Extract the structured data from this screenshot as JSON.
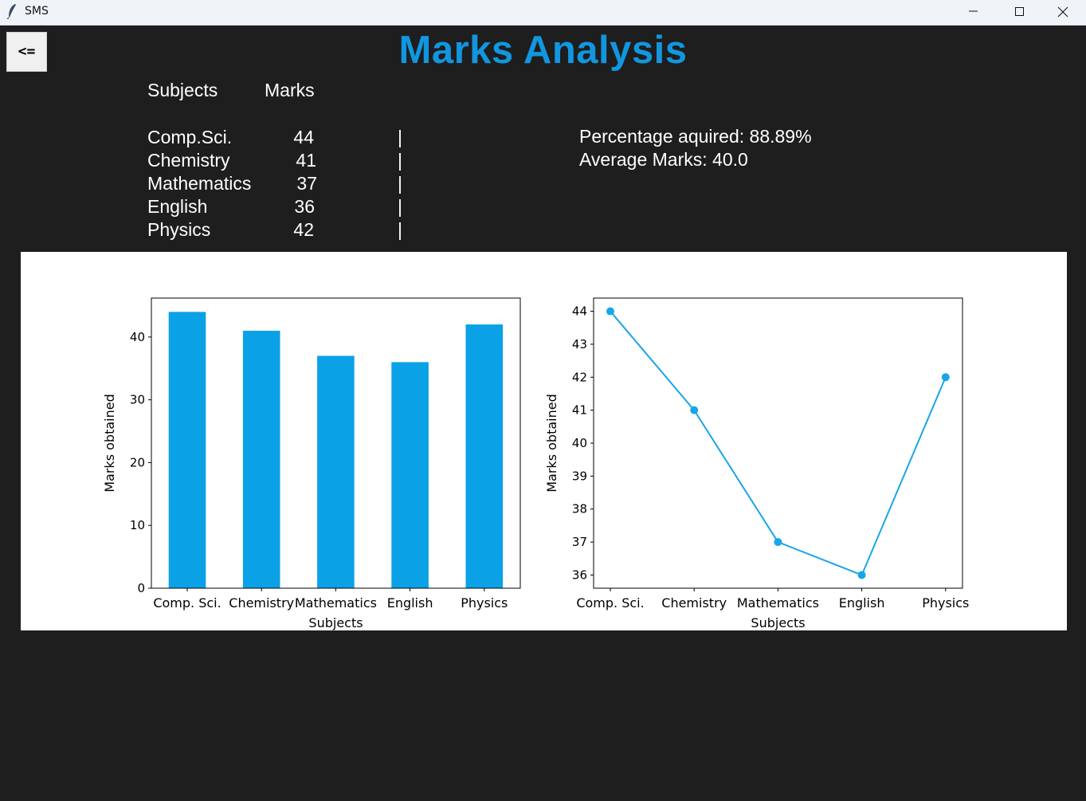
{
  "window": {
    "title": "SMS"
  },
  "back_button": {
    "label": "<="
  },
  "page": {
    "title": "Marks Analysis"
  },
  "table": {
    "header_subjects": "Subjects",
    "header_marks": "Marks",
    "separator": "|",
    "rows": [
      {
        "subject": "Comp.Sci.",
        "marks": "44"
      },
      {
        "subject": "Chemistry",
        "marks": "41"
      },
      {
        "subject": "Mathematics",
        "marks": "37"
      },
      {
        "subject": "English",
        "marks": "36"
      },
      {
        "subject": "Physics",
        "marks": "42"
      }
    ]
  },
  "stats": {
    "percentage": "Percentage aquired: 88.89%",
    "average": "Average Marks: 40.0"
  },
  "colors": {
    "accent": "#1296e0",
    "bar": "#0ba1e6",
    "line": "#1aa5e8",
    "background": "#1e1e1e"
  },
  "chart_data": [
    {
      "type": "bar",
      "categories": [
        "Comp. Sci.",
        "Chemistry",
        "Mathematics",
        "English",
        "Physics"
      ],
      "values": [
        44,
        41,
        37,
        36,
        42
      ],
      "xlabel": "Subjects",
      "ylabel": "Marks obtained",
      "ylim": [
        0,
        46.2
      ],
      "yticks": [
        0,
        10,
        20,
        30,
        40
      ]
    },
    {
      "type": "line",
      "categories": [
        "Comp. Sci.",
        "Chemistry",
        "Mathematics",
        "English",
        "Physics"
      ],
      "values": [
        44,
        41,
        37,
        36,
        42
      ],
      "xlabel": "Subjects",
      "ylabel": "Marks obtained",
      "ylim": [
        35.6,
        44.4
      ],
      "yticks": [
        36,
        37,
        38,
        39,
        40,
        41,
        42,
        43,
        44
      ]
    }
  ]
}
